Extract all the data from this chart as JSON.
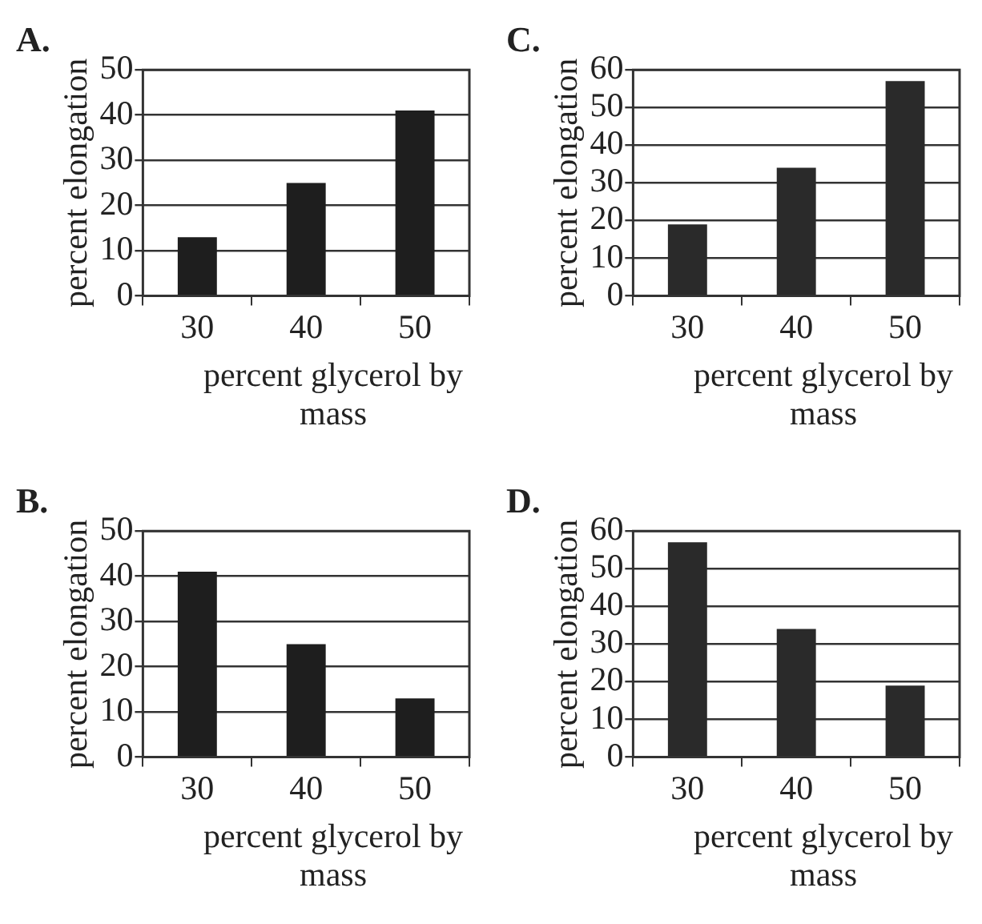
{
  "chart_data": [
    {
      "type": "bar",
      "title": "A.",
      "xlabel": "percent glycerol by mass",
      "ylabel": "percent elongation",
      "categories": [
        "30",
        "40",
        "50"
      ],
      "values": [
        13,
        25,
        41
      ],
      "color": "#1e1e1e",
      "ylim": [
        0,
        50
      ],
      "yticks": [
        0,
        10,
        20,
        30,
        40,
        50
      ],
      "grid": "y"
    },
    {
      "type": "bar",
      "title": "C.",
      "xlabel": "percent glycerol by mass",
      "ylabel": "percent elongation",
      "categories": [
        "30",
        "40",
        "50"
      ],
      "values": [
        19,
        34,
        57
      ],
      "color": "#2a2a2a",
      "ylim": [
        0,
        60
      ],
      "yticks": [
        0,
        10,
        20,
        30,
        40,
        50,
        60
      ],
      "grid": "y"
    },
    {
      "type": "bar",
      "title": "B.",
      "xlabel": "percent glycerol by mass",
      "ylabel": "percent elongation",
      "categories": [
        "30",
        "40",
        "50"
      ],
      "values": [
        41,
        25,
        13
      ],
      "color": "#1e1e1e",
      "ylim": [
        0,
        50
      ],
      "yticks": [
        0,
        10,
        20,
        30,
        40,
        50
      ],
      "grid": "y"
    },
    {
      "type": "bar",
      "title": "D.",
      "xlabel": "percent glycerol by mass",
      "ylabel": "percent elongation",
      "categories": [
        "30",
        "40",
        "50"
      ],
      "values": [
        57,
        34,
        19
      ],
      "color": "#2a2a2a",
      "ylim": [
        0,
        60
      ],
      "yticks": [
        0,
        10,
        20,
        30,
        40,
        50,
        60
      ],
      "grid": "y"
    }
  ]
}
